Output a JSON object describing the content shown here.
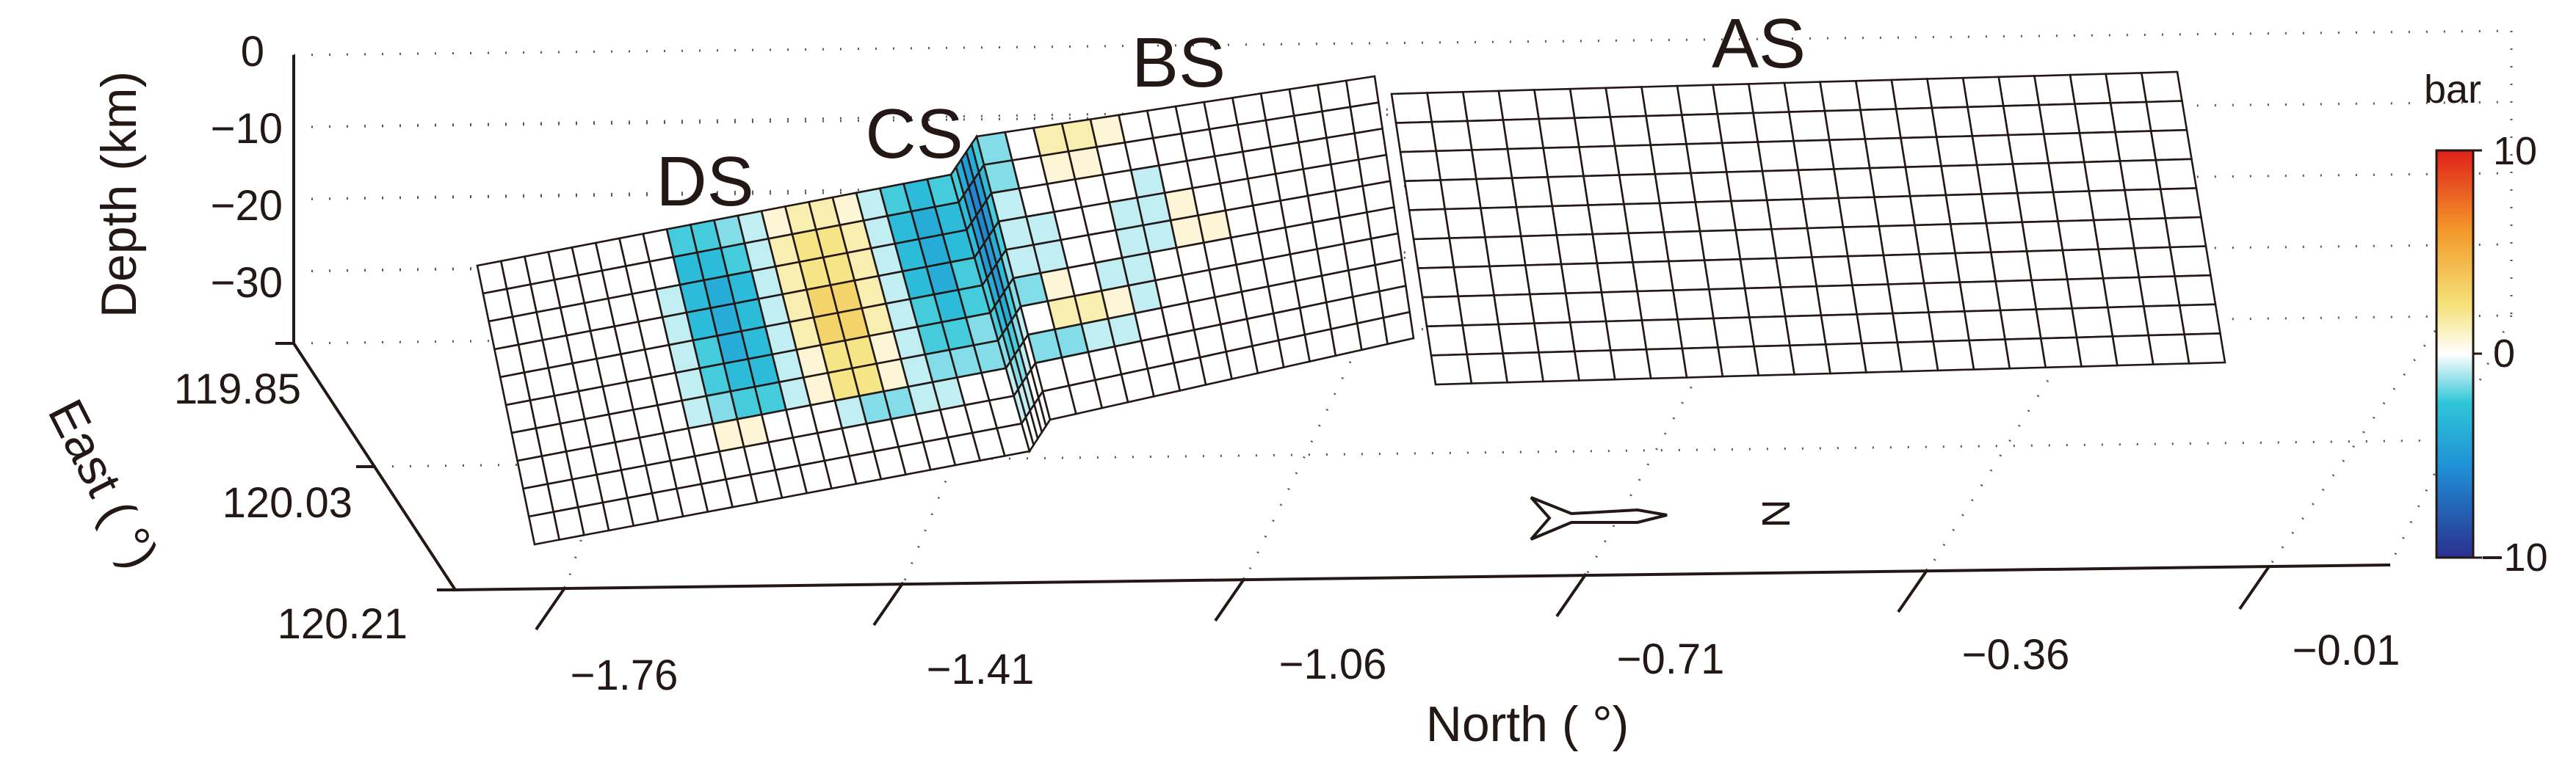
{
  "chart_data": {
    "type": "heatmap",
    "subtype": "3d fault-plane patch surface",
    "xlabel": "North ( °)",
    "ylabel": "East ( °)",
    "zlabel": "Depth (km)",
    "x_ticks": [
      "−1.76",
      "−1.41",
      "−1.06",
      "−0.71",
      "−0.36",
      "−0.01"
    ],
    "y_ticks": [
      "119.85",
      "120.03",
      "120.21"
    ],
    "z_ticks": [
      "0",
      "−10",
      "−20",
      "−30"
    ],
    "colorbar": {
      "title": "bar",
      "ticks": [
        "10",
        "0",
        "−10"
      ],
      "range": [
        -10,
        10
      ],
      "colormap": [
        "#2b2f8f",
        "#1f8fd6",
        "#2fc6d8",
        "#ffffff",
        "#f4e27a",
        "#f39a2a",
        "#e0201b"
      ]
    },
    "north_arrow_label": "N",
    "segments": [
      {
        "name": "DS",
        "rows": 10,
        "cols": 20,
        "values": [
          [
            0,
            0,
            0,
            0,
            0,
            0,
            0,
            0,
            -3,
            -3,
            -2,
            -1,
            1,
            2,
            2,
            1,
            -1,
            -3,
            -4,
            -3
          ],
          [
            0,
            0,
            0,
            0,
            0,
            0,
            0,
            0,
            -4,
            -4,
            -3,
            -1,
            2,
            3,
            3,
            2,
            -1,
            -4,
            -5,
            -4
          ],
          [
            0,
            0,
            0,
            0,
            0,
            0,
            0,
            -1,
            -4,
            -5,
            -4,
            -1,
            2,
            3,
            3,
            2,
            -1,
            -4,
            -5,
            -4
          ],
          [
            0,
            0,
            0,
            0,
            0,
            0,
            0,
            -1,
            -4,
            -5,
            -4,
            -1,
            2,
            4,
            4,
            2,
            -1,
            -4,
            -5,
            -3
          ],
          [
            0,
            0,
            0,
            0,
            0,
            0,
            0,
            -1,
            -3,
            -5,
            -4,
            -1,
            2,
            4,
            4,
            2,
            -1,
            -3,
            -4,
            -3
          ],
          [
            0,
            0,
            0,
            0,
            0,
            0,
            0,
            -1,
            -3,
            -4,
            -4,
            -1,
            1,
            3,
            3,
            1,
            -1,
            -3,
            -3,
            -2
          ],
          [
            0,
            0,
            0,
            0,
            0,
            0,
            0,
            -1,
            -2,
            -3,
            -3,
            -1,
            1,
            3,
            3,
            1,
            -1,
            -2,
            -2,
            -2
          ],
          [
            0,
            0,
            0,
            0,
            0,
            0,
            0,
            0,
            1,
            1,
            0,
            0,
            0,
            -1,
            -2,
            -2,
            -1,
            -1,
            0,
            0
          ],
          [
            0,
            0,
            0,
            0,
            0,
            0,
            0,
            0,
            0,
            0,
            0,
            0,
            0,
            0,
            0,
            0,
            0,
            0,
            0,
            0
          ],
          [
            0,
            0,
            0,
            0,
            0,
            0,
            0,
            0,
            0,
            0,
            0,
            0,
            0,
            0,
            0,
            0,
            0,
            0,
            0,
            0
          ]
        ]
      },
      {
        "name": "CS",
        "rows": 10,
        "cols": 5,
        "values": [
          [
            -3,
            -5,
            -6,
            -5,
            -3
          ],
          [
            -4,
            -6,
            -7,
            -6,
            -4
          ],
          [
            -4,
            -6,
            -7,
            -6,
            -3
          ],
          [
            -4,
            -6,
            -6,
            -5,
            -3
          ],
          [
            -3,
            -5,
            -6,
            -4,
            -2
          ],
          [
            -3,
            -4,
            -5,
            -3,
            -2
          ],
          [
            -2,
            -3,
            -3,
            -2,
            -1
          ],
          [
            -1,
            -2,
            -2,
            -1,
            0
          ],
          [
            -1,
            -1,
            -1,
            0,
            0
          ],
          [
            0,
            0,
            0,
            0,
            0
          ]
        ]
      },
      {
        "name": "BS",
        "rows": 10,
        "cols": 14,
        "values": [
          [
            -2,
            0,
            2,
            2,
            1,
            0,
            0,
            0,
            0,
            0,
            0,
            0,
            0,
            0
          ],
          [
            -2,
            0,
            1,
            1,
            0,
            0,
            0,
            0,
            0,
            0,
            0,
            0,
            0,
            0
          ],
          [
            -1,
            0,
            0,
            0,
            0,
            -1,
            0,
            0,
            0,
            0,
            0,
            0,
            0,
            0
          ],
          [
            -1,
            -1,
            0,
            0,
            -1,
            -1,
            1,
            0,
            0,
            0,
            0,
            0,
            0,
            0
          ],
          [
            -1,
            -1,
            0,
            0,
            -1,
            -1,
            1,
            1,
            0,
            0,
            0,
            0,
            0,
            0
          ],
          [
            -2,
            1,
            0,
            -1,
            -1,
            0,
            0,
            0,
            0,
            0,
            0,
            0,
            0,
            0
          ],
          [
            0,
            2,
            2,
            1,
            -1,
            0,
            0,
            0,
            0,
            0,
            0,
            0,
            0,
            0
          ],
          [
            -2,
            -2,
            -1,
            -1,
            0,
            0,
            0,
            0,
            0,
            0,
            0,
            0,
            0,
            0
          ],
          [
            0,
            0,
            0,
            0,
            0,
            0,
            0,
            0,
            0,
            0,
            0,
            0,
            0,
            0
          ],
          [
            0,
            0,
            0,
            0,
            0,
            0,
            0,
            0,
            0,
            0,
            0,
            0,
            0,
            0
          ]
        ]
      },
      {
        "name": "AS",
        "rows": 10,
        "cols": 22,
        "values": "all 0"
      }
    ]
  }
}
